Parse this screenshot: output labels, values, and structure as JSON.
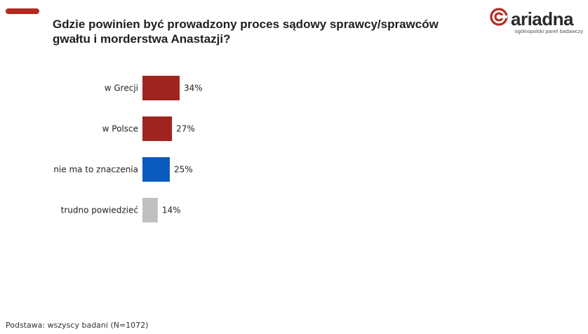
{
  "title": "Gdzie powinien być prowadzony proces sądowy sprawcy/sprawców gwałtu i morderstwa Anastazji?",
  "logo": {
    "name": "ariadna",
    "tagline": "ogólnopolski panel badawczy",
    "icon": "ariadna-spiral-icon",
    "color": "#b32a22"
  },
  "footer": "Podstawa: wszyscy badani (N=1072)",
  "colors": {
    "accent": "#b32a22",
    "red": "#a0241e",
    "blue": "#0a5bbd",
    "gray": "#c0c0c0"
  },
  "chart_data": {
    "type": "bar",
    "orientation": "horizontal",
    "categories": [
      "w Grecji",
      "w Polsce",
      "nie ma to znaczenia",
      "trudno powiedzieć"
    ],
    "values": [
      34,
      27,
      25,
      14
    ],
    "value_labels": [
      "34%",
      "27%",
      "25%",
      "14%"
    ],
    "bar_colors": [
      "#a0241e",
      "#a0241e",
      "#0a5bbd",
      "#c0c0c0"
    ],
    "unit": "%",
    "xlim": [
      0,
      100
    ],
    "grid": false,
    "legend": "none"
  }
}
